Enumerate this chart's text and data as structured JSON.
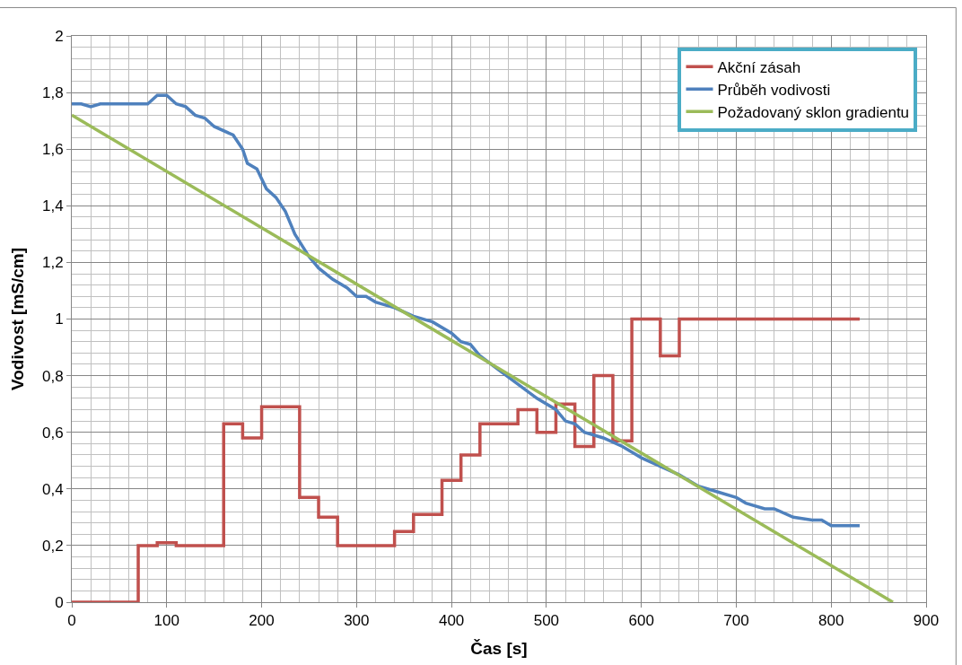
{
  "chart_data": {
    "type": "line",
    "xlabel": "Čas [s]",
    "ylabel": "Vodivost [mS/cm]",
    "xlim": [
      0,
      900
    ],
    "xticks": [
      0,
      100,
      200,
      300,
      400,
      500,
      600,
      700,
      800,
      900
    ],
    "ylim": [
      0,
      2
    ],
    "yticks": [
      0,
      {
        "value": 0.2,
        "label": "0,2"
      },
      {
        "value": 0.4,
        "label": "0,4"
      },
      {
        "value": 0.6,
        "label": "0,6"
      },
      {
        "value": 0.8,
        "label": "0,8"
      },
      1,
      {
        "value": 1.2,
        "label": "1,2"
      },
      {
        "value": 1.4,
        "label": "1,4"
      },
      {
        "value": 1.6,
        "label": "1,6"
      },
      {
        "value": 1.8,
        "label": "1,8"
      },
      2
    ],
    "grid": true,
    "legend": "top right",
    "marker": "none",
    "line_style": "solid",
    "series": [
      {
        "name": "Akční zásah",
        "color": "#c0504d",
        "type": "step",
        "x": [
          0,
          70,
          90,
          110,
          160,
          180,
          200,
          240,
          260,
          280,
          340,
          360,
          390,
          410,
          430,
          470,
          490,
          510,
          530,
          550,
          570,
          590,
          620,
          640,
          830
        ],
        "values": [
          0,
          0.2,
          0.21,
          0.2,
          0.63,
          0.58,
          0.69,
          0.37,
          0.3,
          0.2,
          0.25,
          0.31,
          0.43,
          0.52,
          0.63,
          0.68,
          0.6,
          0.7,
          0.55,
          0.8,
          0.57,
          1.0,
          0.87,
          1.0,
          1.0
        ]
      },
      {
        "name": "Průběh vodivosti",
        "color": "#4f81bd",
        "x": [
          0,
          10,
          20,
          30,
          50,
          80,
          90,
          100,
          110,
          120,
          130,
          140,
          150,
          170,
          180,
          185,
          195,
          205,
          215,
          225,
          235,
          250,
          260,
          275,
          290,
          300,
          310,
          320,
          340,
          360,
          380,
          400,
          410,
          420,
          430,
          450,
          470,
          490,
          510,
          520,
          530,
          540,
          560,
          580,
          600,
          620,
          640,
          660,
          680,
          700,
          710,
          730,
          740,
          760,
          780,
          790,
          800,
          830
        ],
        "values": [
          1.76,
          1.76,
          1.75,
          1.76,
          1.76,
          1.76,
          1.79,
          1.79,
          1.76,
          1.75,
          1.72,
          1.71,
          1.68,
          1.65,
          1.6,
          1.55,
          1.53,
          1.46,
          1.43,
          1.38,
          1.3,
          1.22,
          1.18,
          1.14,
          1.11,
          1.08,
          1.08,
          1.06,
          1.04,
          1.01,
          0.99,
          0.95,
          0.92,
          0.91,
          0.87,
          0.82,
          0.77,
          0.72,
          0.68,
          0.64,
          0.63,
          0.6,
          0.58,
          0.55,
          0.51,
          0.48,
          0.45,
          0.41,
          0.39,
          0.37,
          0.35,
          0.33,
          0.33,
          0.3,
          0.29,
          0.29,
          0.27,
          0.27
        ]
      },
      {
        "name": "Požadovaný sklon gradientu",
        "color": "#9bbb59",
        "x": [
          0,
          865
        ],
        "values": [
          1.72,
          0
        ]
      }
    ]
  }
}
